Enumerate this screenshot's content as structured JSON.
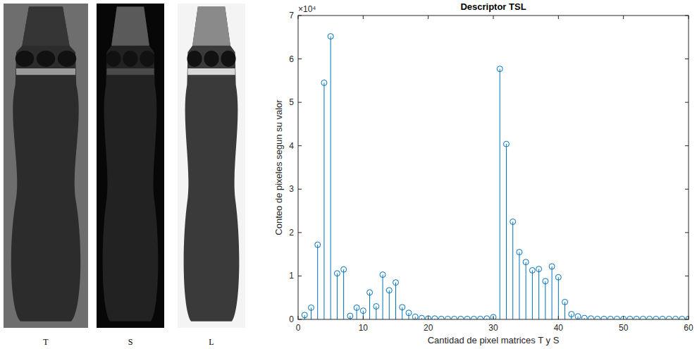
{
  "image_labels": [
    "T",
    "S",
    "L"
  ],
  "chart_data": {
    "type": "stem",
    "title": "Descriptor TSL",
    "x_label": "Cantidad de pixel matrices T y S",
    "y_label": "Conteo de pixeles segun su valor",
    "annotation": "×10⁴",
    "x": [
      1,
      2,
      3,
      4,
      5,
      6,
      7,
      8,
      9,
      10,
      11,
      12,
      13,
      14,
      15,
      16,
      17,
      18,
      19,
      20,
      21,
      22,
      23,
      24,
      25,
      26,
      27,
      28,
      29,
      30,
      31,
      32,
      33,
      34,
      35,
      36,
      37,
      38,
      39,
      40,
      41,
      42,
      43,
      44,
      45,
      46,
      47,
      48,
      49,
      50,
      51,
      52,
      53,
      54,
      55,
      56,
      57,
      58,
      59,
      60
    ],
    "values": [
      0.1,
      0.27,
      1.72,
      5.45,
      6.52,
      1.06,
      1.15,
      0.08,
      0.27,
      0.2,
      0.62,
      0.3,
      1.03,
      0.67,
      0.85,
      0.28,
      0.15,
      0.06,
      0.03,
      0.02,
      0.02,
      0.01,
      0.01,
      0.01,
      0.01,
      0.01,
      0.01,
      0.01,
      0.02,
      0.05,
      5.77,
      4.04,
      2.25,
      1.55,
      1.32,
      1.13,
      1.16,
      0.88,
      1.22,
      0.97,
      0.4,
      0.12,
      0.07,
      0.03,
      0.02,
      0.01,
      0.01,
      0.01,
      0.01,
      0.01,
      0.01,
      0.01,
      0.01,
      0.01,
      0.01,
      0.01,
      0.01,
      0.01,
      0.01,
      0.01
    ],
    "color": "#0072bd",
    "marker": "circle",
    "xlim": [
      0,
      60
    ],
    "xticks": [
      0,
      10,
      20,
      30,
      40,
      50,
      60
    ],
    "ylim": [
      0,
      7
    ],
    "yticks": [
      0,
      1,
      2,
      3,
      4,
      5,
      6,
      7
    ],
    "grid": false
  }
}
